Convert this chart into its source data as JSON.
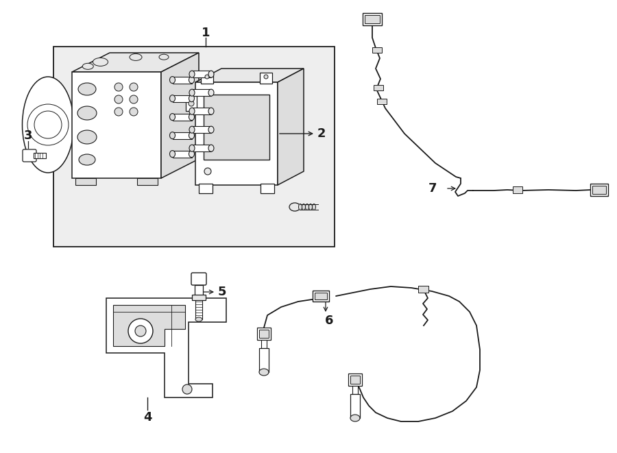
{
  "bg_color": "#ffffff",
  "lc": "#1a1a1a",
  "box_fill": "#eeeeee",
  "part_fill": "#ffffff",
  "shade_fill": "#dddddd",
  "mid_fill": "#e8e8e8"
}
